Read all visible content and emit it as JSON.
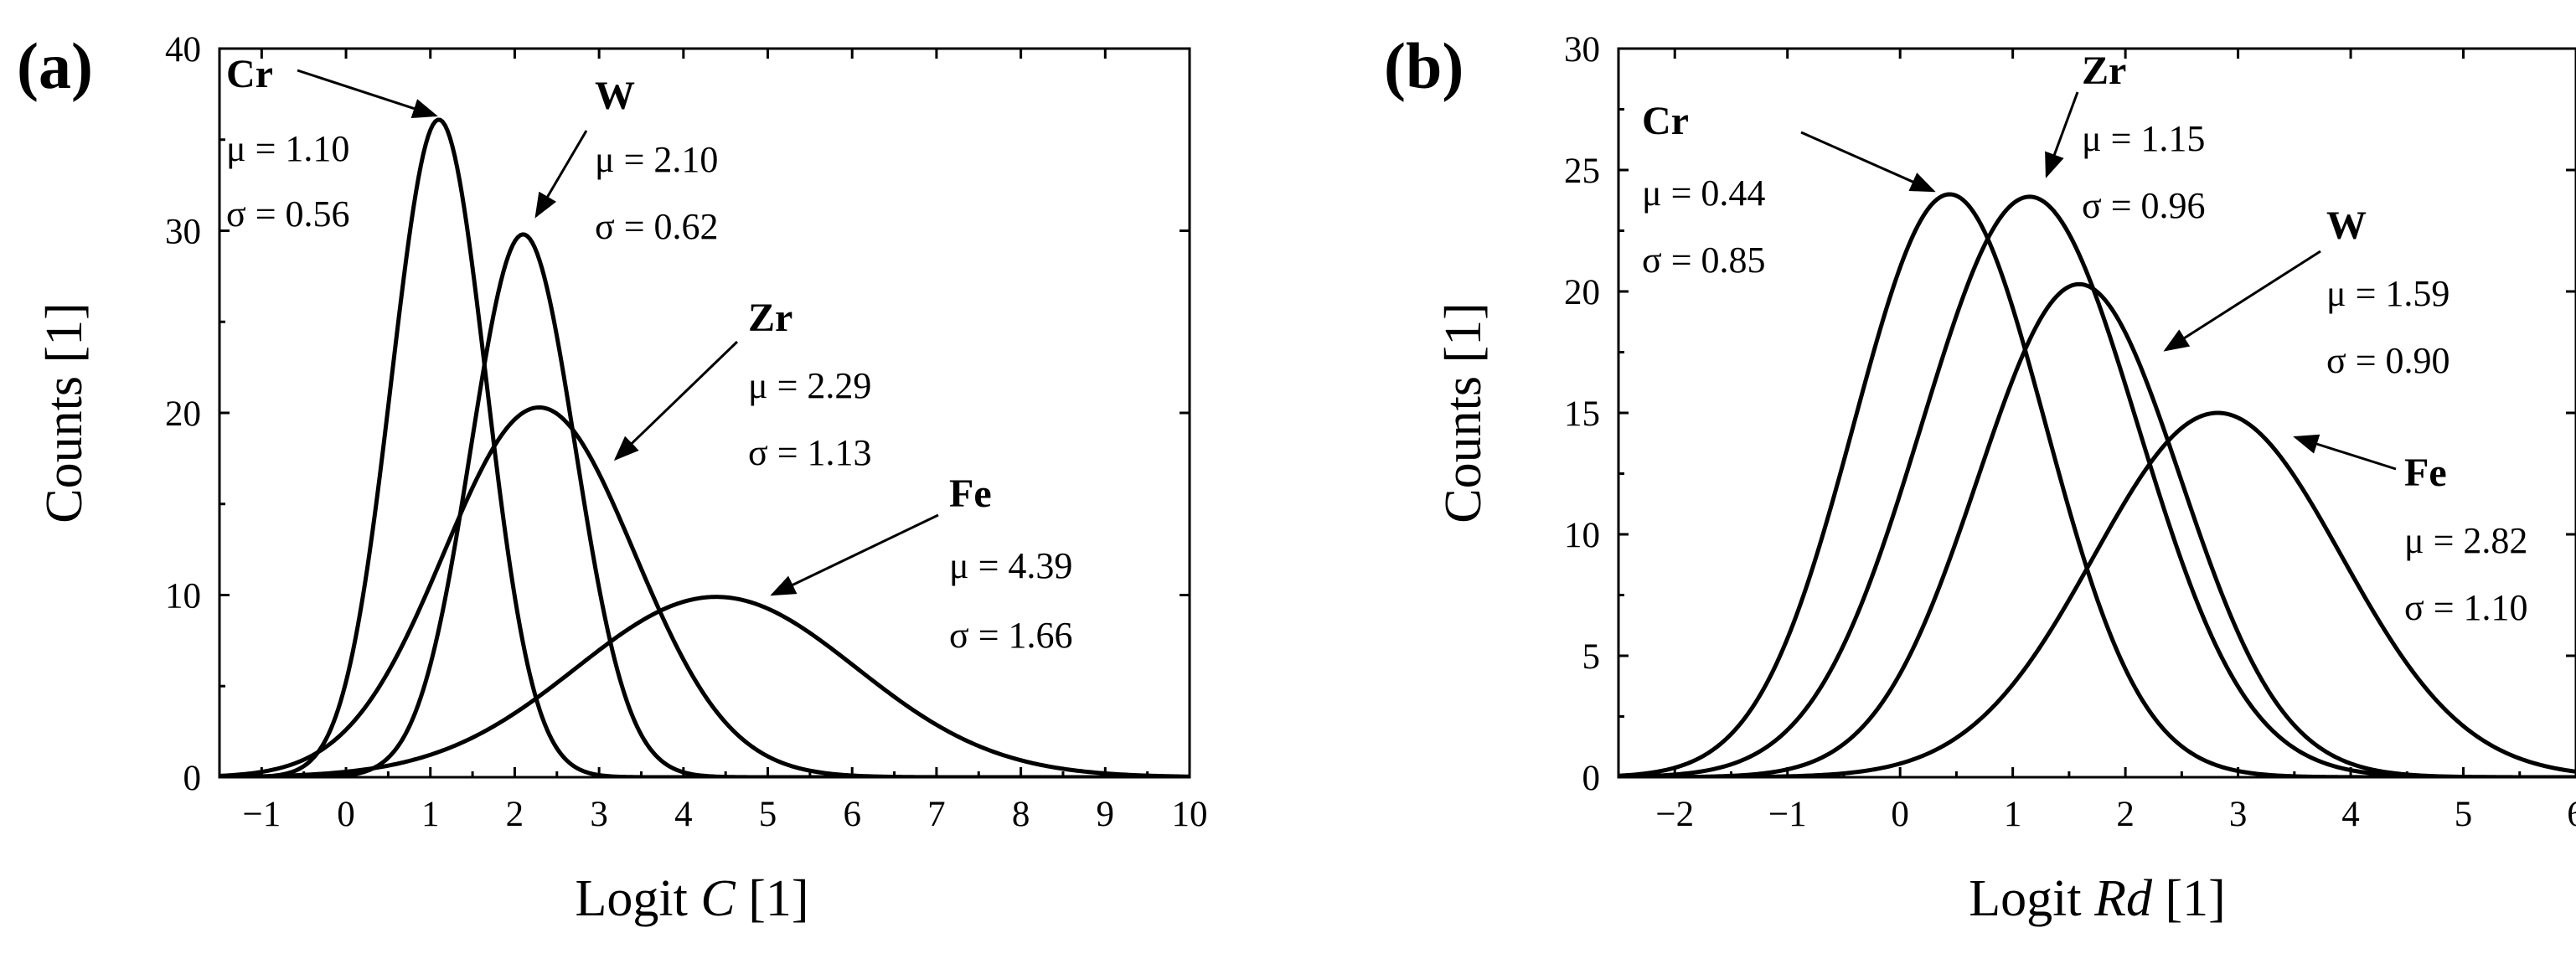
{
  "chart_data": [
    {
      "type": "line",
      "panel_label": "(a)",
      "xlabel": "Logit",
      "xlabel_var": "C",
      "xlabel_unit": "[1]",
      "ylabel": "Counts [1]",
      "xlim": [
        -1.5,
        10
      ],
      "ylim": [
        0,
        40
      ],
      "xticks": [
        -1,
        0,
        1,
        2,
        3,
        4,
        5,
        6,
        7,
        8,
        9,
        10
      ],
      "xtick_labels": [
        "−1",
        "0",
        "1",
        "2",
        "3",
        "4",
        "5",
        "6",
        "7",
        "8",
        "9",
        "10"
      ],
      "yticks": [
        0,
        10,
        20,
        30,
        40
      ],
      "ytick_labels": [
        "0",
        "10",
        "20",
        "30",
        "40"
      ],
      "series": [
        {
          "name": "Cr",
          "mu": 1.1,
          "sigma": 0.56,
          "peak": 36.1,
          "mu_text": "μ = 1.10",
          "sigma_text": "σ = 0.56"
        },
        {
          "name": "W",
          "mu": 2.1,
          "sigma": 0.62,
          "peak": 29.8,
          "mu_text": "μ = 2.10",
          "sigma_text": "σ = 0.62"
        },
        {
          "name": "Zr",
          "mu": 2.29,
          "sigma": 1.13,
          "peak": 20.3,
          "mu_text": "μ = 2.29",
          "sigma_text": "σ = 1.13"
        },
        {
          "name": "Fe",
          "mu": 4.39,
          "sigma": 1.66,
          "peak": 9.9,
          "mu_text": "μ = 4.39",
          "sigma_text": "σ = 1.66"
        }
      ]
    },
    {
      "type": "line",
      "panel_label": "(b)",
      "xlabel": "Logit",
      "xlabel_var": "Rd",
      "xlabel_unit": "[1]",
      "ylabel": "Counts [1]",
      "xlim": [
        -2.5,
        6
      ],
      "ylim": [
        0,
        30
      ],
      "xticks": [
        -2,
        -1,
        0,
        1,
        2,
        3,
        4,
        5,
        6
      ],
      "xtick_labels": [
        "−2",
        "−1",
        "0",
        "1",
        "2",
        "3",
        "4",
        "5",
        "6"
      ],
      "yticks": [
        0,
        5,
        10,
        15,
        20,
        25,
        30
      ],
      "ytick_labels": [
        "0",
        "5",
        "10",
        "15",
        "20",
        "25",
        "30"
      ],
      "series": [
        {
          "name": "Cr",
          "mu": 0.44,
          "sigma": 0.85,
          "peak": 24.0,
          "mu_text": "μ = 0.44",
          "sigma_text": "σ = 0.85"
        },
        {
          "name": "Zr",
          "mu": 1.15,
          "sigma": 0.96,
          "peak": 23.9,
          "mu_text": "μ = 1.15",
          "sigma_text": "σ = 0.96"
        },
        {
          "name": "W",
          "mu": 1.59,
          "sigma": 0.9,
          "peak": 20.3,
          "mu_text": "μ = 1.59",
          "sigma_text": "σ = 0.90"
        },
        {
          "name": "Fe",
          "mu": 2.82,
          "sigma": 1.1,
          "peak": 15.0,
          "mu_text": "μ = 2.82",
          "sigma_text": "σ = 1.10"
        }
      ]
    }
  ]
}
